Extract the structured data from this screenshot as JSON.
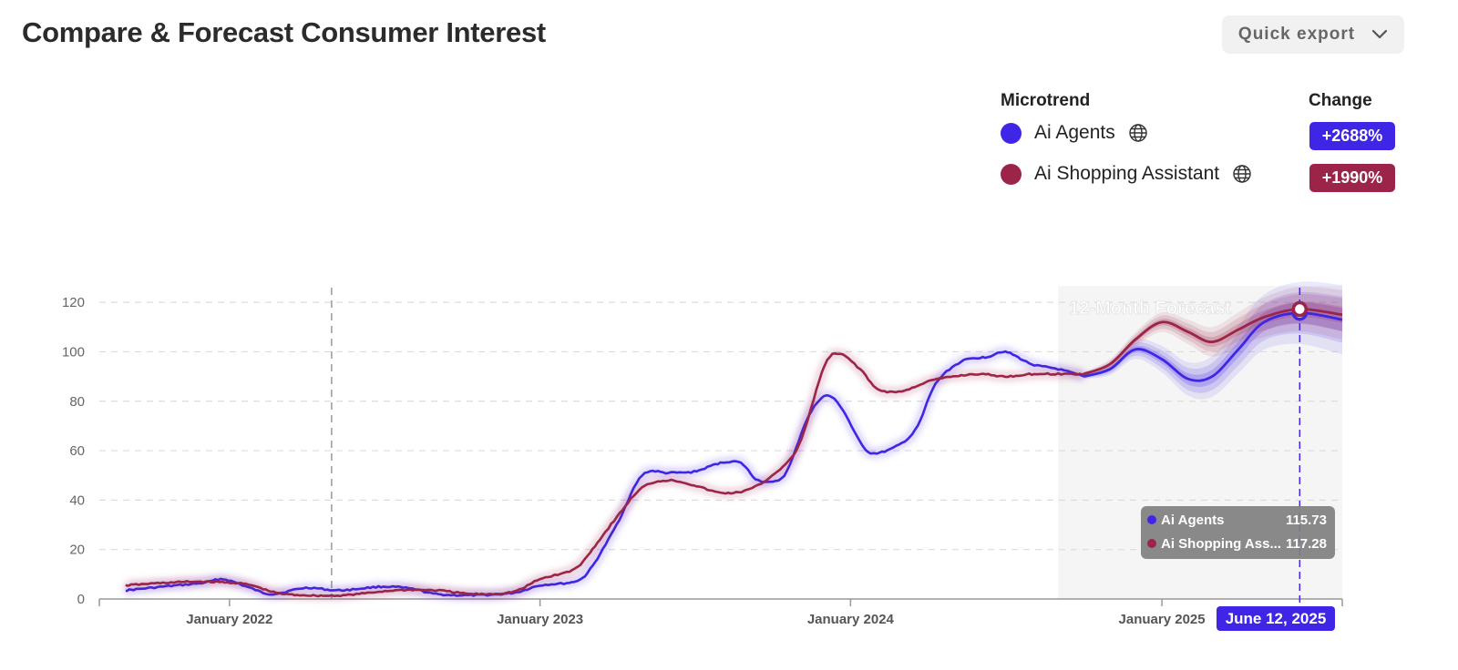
{
  "header": {
    "title": "Compare & Forecast Consumer Interest",
    "export_label": "Quick export"
  },
  "legend": {
    "microtrend_header": "Microtrend",
    "change_header": "Change",
    "items": [
      {
        "name": "Ai Agents",
        "color": "#3f25e6",
        "change": "+2688%",
        "icon": "globe-icon"
      },
      {
        "name": "Ai Shopping Assistant",
        "color": "#9b2448",
        "change": "+1990%",
        "icon": "globe-icon"
      }
    ]
  },
  "tooltip": {
    "items": [
      {
        "name": "Ai Agents",
        "value": "115.73",
        "color": "#3f25e6"
      },
      {
        "name": "Ai Shopping Ass...",
        "value": "117.28",
        "color": "#9b2448"
      }
    ],
    "date": "June 12, 2025"
  },
  "chart_data": {
    "type": "line",
    "forecast_label": "12-Month Forecast",
    "x_ticks": [
      "January 2022",
      "January 2023",
      "January 2024",
      "January 2025"
    ],
    "y_ticks": [
      0,
      20,
      40,
      60,
      80,
      100,
      120
    ],
    "ylim": [
      0,
      130
    ],
    "xlim": [
      "2021-08-01",
      "2025-08-01"
    ],
    "grid": true,
    "forecast_start": "2024-09-01",
    "marker_date": "2025-06-12",
    "reference_date": "2022-05-01",
    "series": [
      {
        "name": "Ai Agents",
        "color": "#3f25e6",
        "points": [
          [
            "2021-09-01",
            3.5
          ],
          [
            "2021-10-15",
            5
          ],
          [
            "2021-12-01",
            6.5
          ],
          [
            "2021-12-25",
            8
          ],
          [
            "2022-01-25",
            4.5
          ],
          [
            "2022-02-20",
            2
          ],
          [
            "2022-04-01",
            4.5
          ],
          [
            "2022-05-10",
            3.5
          ],
          [
            "2022-07-01",
            5
          ],
          [
            "2022-08-05",
            4
          ],
          [
            "2022-09-01",
            2
          ],
          [
            "2022-10-15",
            1.5
          ],
          [
            "2022-12-01",
            2.5
          ],
          [
            "2023-01-01",
            5.5
          ],
          [
            "2023-02-10",
            7
          ],
          [
            "2023-03-01",
            12
          ],
          [
            "2023-04-01",
            30
          ],
          [
            "2023-05-01",
            50
          ],
          [
            "2023-06-01",
            51
          ],
          [
            "2023-07-01",
            51.5
          ],
          [
            "2023-08-01",
            55
          ],
          [
            "2023-08-25",
            55
          ],
          [
            "2023-09-15",
            48
          ],
          [
            "2023-10-15",
            50
          ],
          [
            "2023-11-10",
            72
          ],
          [
            "2023-12-01",
            82
          ],
          [
            "2023-12-20",
            78
          ],
          [
            "2024-01-15",
            62
          ],
          [
            "2024-02-01",
            59
          ],
          [
            "2024-03-01",
            63
          ],
          [
            "2024-03-20",
            70
          ],
          [
            "2024-04-10",
            87
          ],
          [
            "2024-05-10",
            96
          ],
          [
            "2024-06-10",
            98
          ],
          [
            "2024-07-01",
            100
          ],
          [
            "2024-08-01",
            95
          ],
          [
            "2024-09-01",
            93
          ],
          [
            "2024-10-01",
            90
          ]
        ],
        "forecast": [
          [
            "2024-10-01",
            90
          ],
          [
            "2024-11-01",
            93
          ],
          [
            "2024-12-01",
            101
          ],
          [
            "2025-01-01",
            97
          ],
          [
            "2025-02-01",
            89
          ],
          [
            "2025-03-01",
            90
          ],
          [
            "2025-04-01",
            101
          ],
          [
            "2025-05-01",
            112
          ],
          [
            "2025-06-12",
            115.73
          ],
          [
            "2025-08-01",
            113
          ]
        ],
        "band": [
          1,
          5,
          10,
          14
        ]
      },
      {
        "name": "Ai Shopping Assistant",
        "color": "#9b2448",
        "points": [
          [
            "2021-09-01",
            5.5
          ],
          [
            "2021-10-15",
            6.5
          ],
          [
            "2021-12-01",
            7
          ],
          [
            "2022-01-20",
            6
          ],
          [
            "2022-02-25",
            2.5
          ],
          [
            "2022-04-01",
            1.5
          ],
          [
            "2022-05-15",
            1.5
          ],
          [
            "2022-07-15",
            3.5
          ],
          [
            "2022-09-01",
            3.5
          ],
          [
            "2022-10-15",
            2
          ],
          [
            "2022-12-01",
            3
          ],
          [
            "2023-01-01",
            8
          ],
          [
            "2023-02-10",
            12
          ],
          [
            "2023-03-01",
            19
          ],
          [
            "2023-04-01",
            33
          ],
          [
            "2023-05-01",
            45
          ],
          [
            "2023-06-01",
            48
          ],
          [
            "2023-07-01",
            46
          ],
          [
            "2023-08-01",
            43
          ],
          [
            "2023-09-01",
            44
          ],
          [
            "2023-10-01",
            50
          ],
          [
            "2023-11-01",
            62
          ],
          [
            "2023-12-01",
            94
          ],
          [
            "2023-12-20",
            99
          ],
          [
            "2024-01-15",
            92
          ],
          [
            "2024-02-01",
            85
          ],
          [
            "2024-03-01",
            84
          ],
          [
            "2024-04-01",
            88
          ],
          [
            "2024-05-01",
            90
          ],
          [
            "2024-06-01",
            91
          ],
          [
            "2024-07-01",
            90
          ],
          [
            "2024-08-01",
            91
          ],
          [
            "2024-09-01",
            91
          ],
          [
            "2024-10-01",
            91
          ]
        ],
        "forecast": [
          [
            "2024-10-01",
            91
          ],
          [
            "2024-11-01",
            95
          ],
          [
            "2024-12-01",
            105
          ],
          [
            "2025-01-01",
            112
          ],
          [
            "2025-02-01",
            108
          ],
          [
            "2025-03-01",
            104
          ],
          [
            "2025-04-01",
            109
          ],
          [
            "2025-05-01",
            114
          ],
          [
            "2025-06-12",
            117.28
          ],
          [
            "2025-08-01",
            115
          ]
        ],
        "band": [
          1,
          4,
          7,
          10
        ]
      }
    ]
  }
}
